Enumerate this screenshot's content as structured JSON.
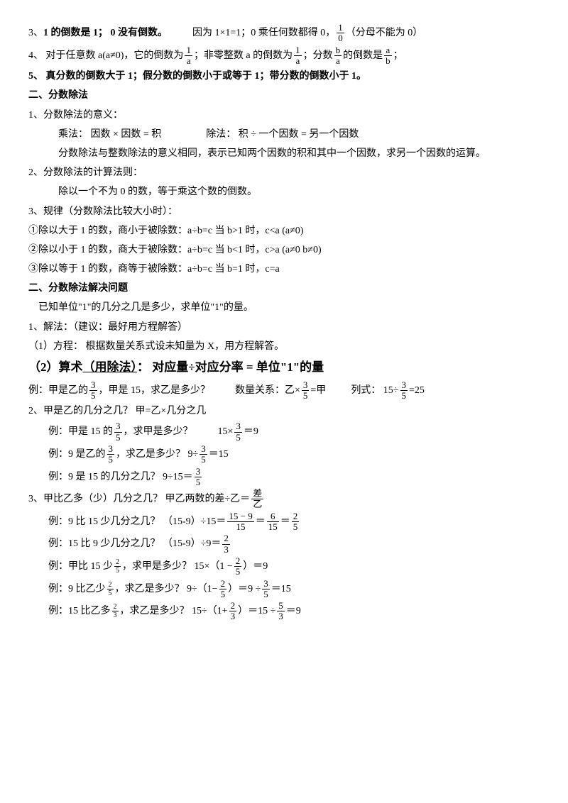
{
  "p3": {
    "prefix": "3、",
    "bold": "1 的倒数是 1； 0 没有倒数。",
    "rest1": "因为 1×1=1；0 乘任何数都得 0，",
    "frac1_num": "1",
    "frac1_den": "0",
    "rest2": "（分母不能为 0）"
  },
  "p4": {
    "prefix": "4、 对于任意数 a(a≠0)，它的倒数为",
    "f1n": "1",
    "f1d": "a",
    "mid1": "；非零整数 a 的倒数为",
    "f2n": "1",
    "f2d": "a",
    "mid2": "；分数",
    "f3n": "b",
    "f3d": "a",
    "mid3": "的倒数是",
    "f4n": "a",
    "f4d": "b",
    "end": "；"
  },
  "p5": "5、 真分数的倒数大于 1；假分数的倒数小于或等于 1；带分数的倒数小于 1。",
  "s2_title": "二、分数除法",
  "s2_1": "1、分数除法的意义：",
  "s2_1a": "乘法： 因数 × 因数 = 积",
  "s2_1b": "除法： 积 ÷ 一个因数 = 另一个因数",
  "s2_1c": "分数除法与整数除法的意义相同，表示已知两个因数的积和其中一个因数，求另一个因数的运算。",
  "s2_2": "2、分数除法的计算法则：",
  "s2_2a": "除以一个不为 0 的数，等于乘这个数的倒数。",
  "s2_3": "3、规律（分数除法比较大小时）：",
  "r1": "①除以大于 1 的数，商小于被除数：a÷b=c  当 b>1 时，c<a  (a≠0)",
  "r2": "②除以小于 1 的数，商大于被除数：a÷b=c  当 b<1 时，c>a  (a≠0  b≠0)",
  "r3": "③除以等于 1 的数，商等于被除数：a÷b=c  当 b=1 时，c=a",
  "s3_title": "二、分数除法解决问题",
  "s3_a": "已知单位\"1\"的几分之几是多少，求单位\"1\"的量。",
  "s3_1": "1、解法：（建议：最好用方程解答）",
  "s3_1a": "（1）方程：  根据数量关系式设未知量为 X，用方程解答。",
  "s3_2a": "（2）算术",
  "s3_2b": "（用除法）",
  "s3_2c": "：   对应量÷对应分率 = 单位\"1\"的量",
  "ex1": {
    "a": "例：甲是乙的",
    "fn": "3",
    "fd": "5",
    "b": "，甲是 15，求乙是多少？",
    "c": "数量关系：乙×",
    "d": "=甲",
    "e": "列式：  15÷",
    "f": "=25"
  },
  "q2": "2、甲是乙的几分之几？   甲=乙×几分之几",
  "q2a": {
    "a": "例：甲是 15 的",
    "fn": "3",
    "fd": "5",
    "b": "，求甲是多少？",
    "c": "15×",
    "d": "＝9"
  },
  "q2b": {
    "a": "例：9 是乙的",
    "fn": "3",
    "fd": "5",
    "b": "，求乙是多少？  9÷",
    "c": "＝15"
  },
  "q2c": {
    "a": "例：9 是 15 的几分之几？  9÷15＝",
    "fn": "3",
    "fd": "5"
  },
  "q3": {
    "a": "3、甲比乙多（少）几分之几？  甲乙两数的差÷乙＝",
    "fn": "差",
    "fd": "乙"
  },
  "q3a": {
    "a": "例：9 比 15 少几分之几？   （15-9）÷15＝",
    "f1n": "15 − 9",
    "f1d": "15",
    "eq1": "＝",
    "f2n": "6",
    "f2d": "15",
    "eq2": "＝",
    "f3n": "2",
    "f3d": "5"
  },
  "q3b": {
    "a": "例：15 比 9 少几分之几？   （15-9）÷9＝",
    "fn": "2",
    "fd": "3"
  },
  "q3c": {
    "a": "例：甲比 15 少",
    "sn": "2",
    "sd": "5",
    "b": "，求甲是多少？   15×（1 −",
    "fn": "2",
    "fd": "5",
    "c": "）＝9"
  },
  "q3d": {
    "a": "例：9 比乙少",
    "sn": "2",
    "sd": "5",
    "b": "，求乙是多少？  9÷（1−",
    "f1n": "2",
    "f1d": "5",
    "c": "）＝9 ÷",
    "f2n": "3",
    "f2d": "5",
    "d": "＝15"
  },
  "q3e": {
    "a": "例：15 比乙多",
    "sn": "2",
    "sd": "3",
    "b": "，求乙是多少？  15÷（1+",
    "f1n": "2",
    "f1d": "3",
    "c": "）＝15 ÷",
    "f2n": "5",
    "f2d": "3",
    "d": "＝9"
  }
}
